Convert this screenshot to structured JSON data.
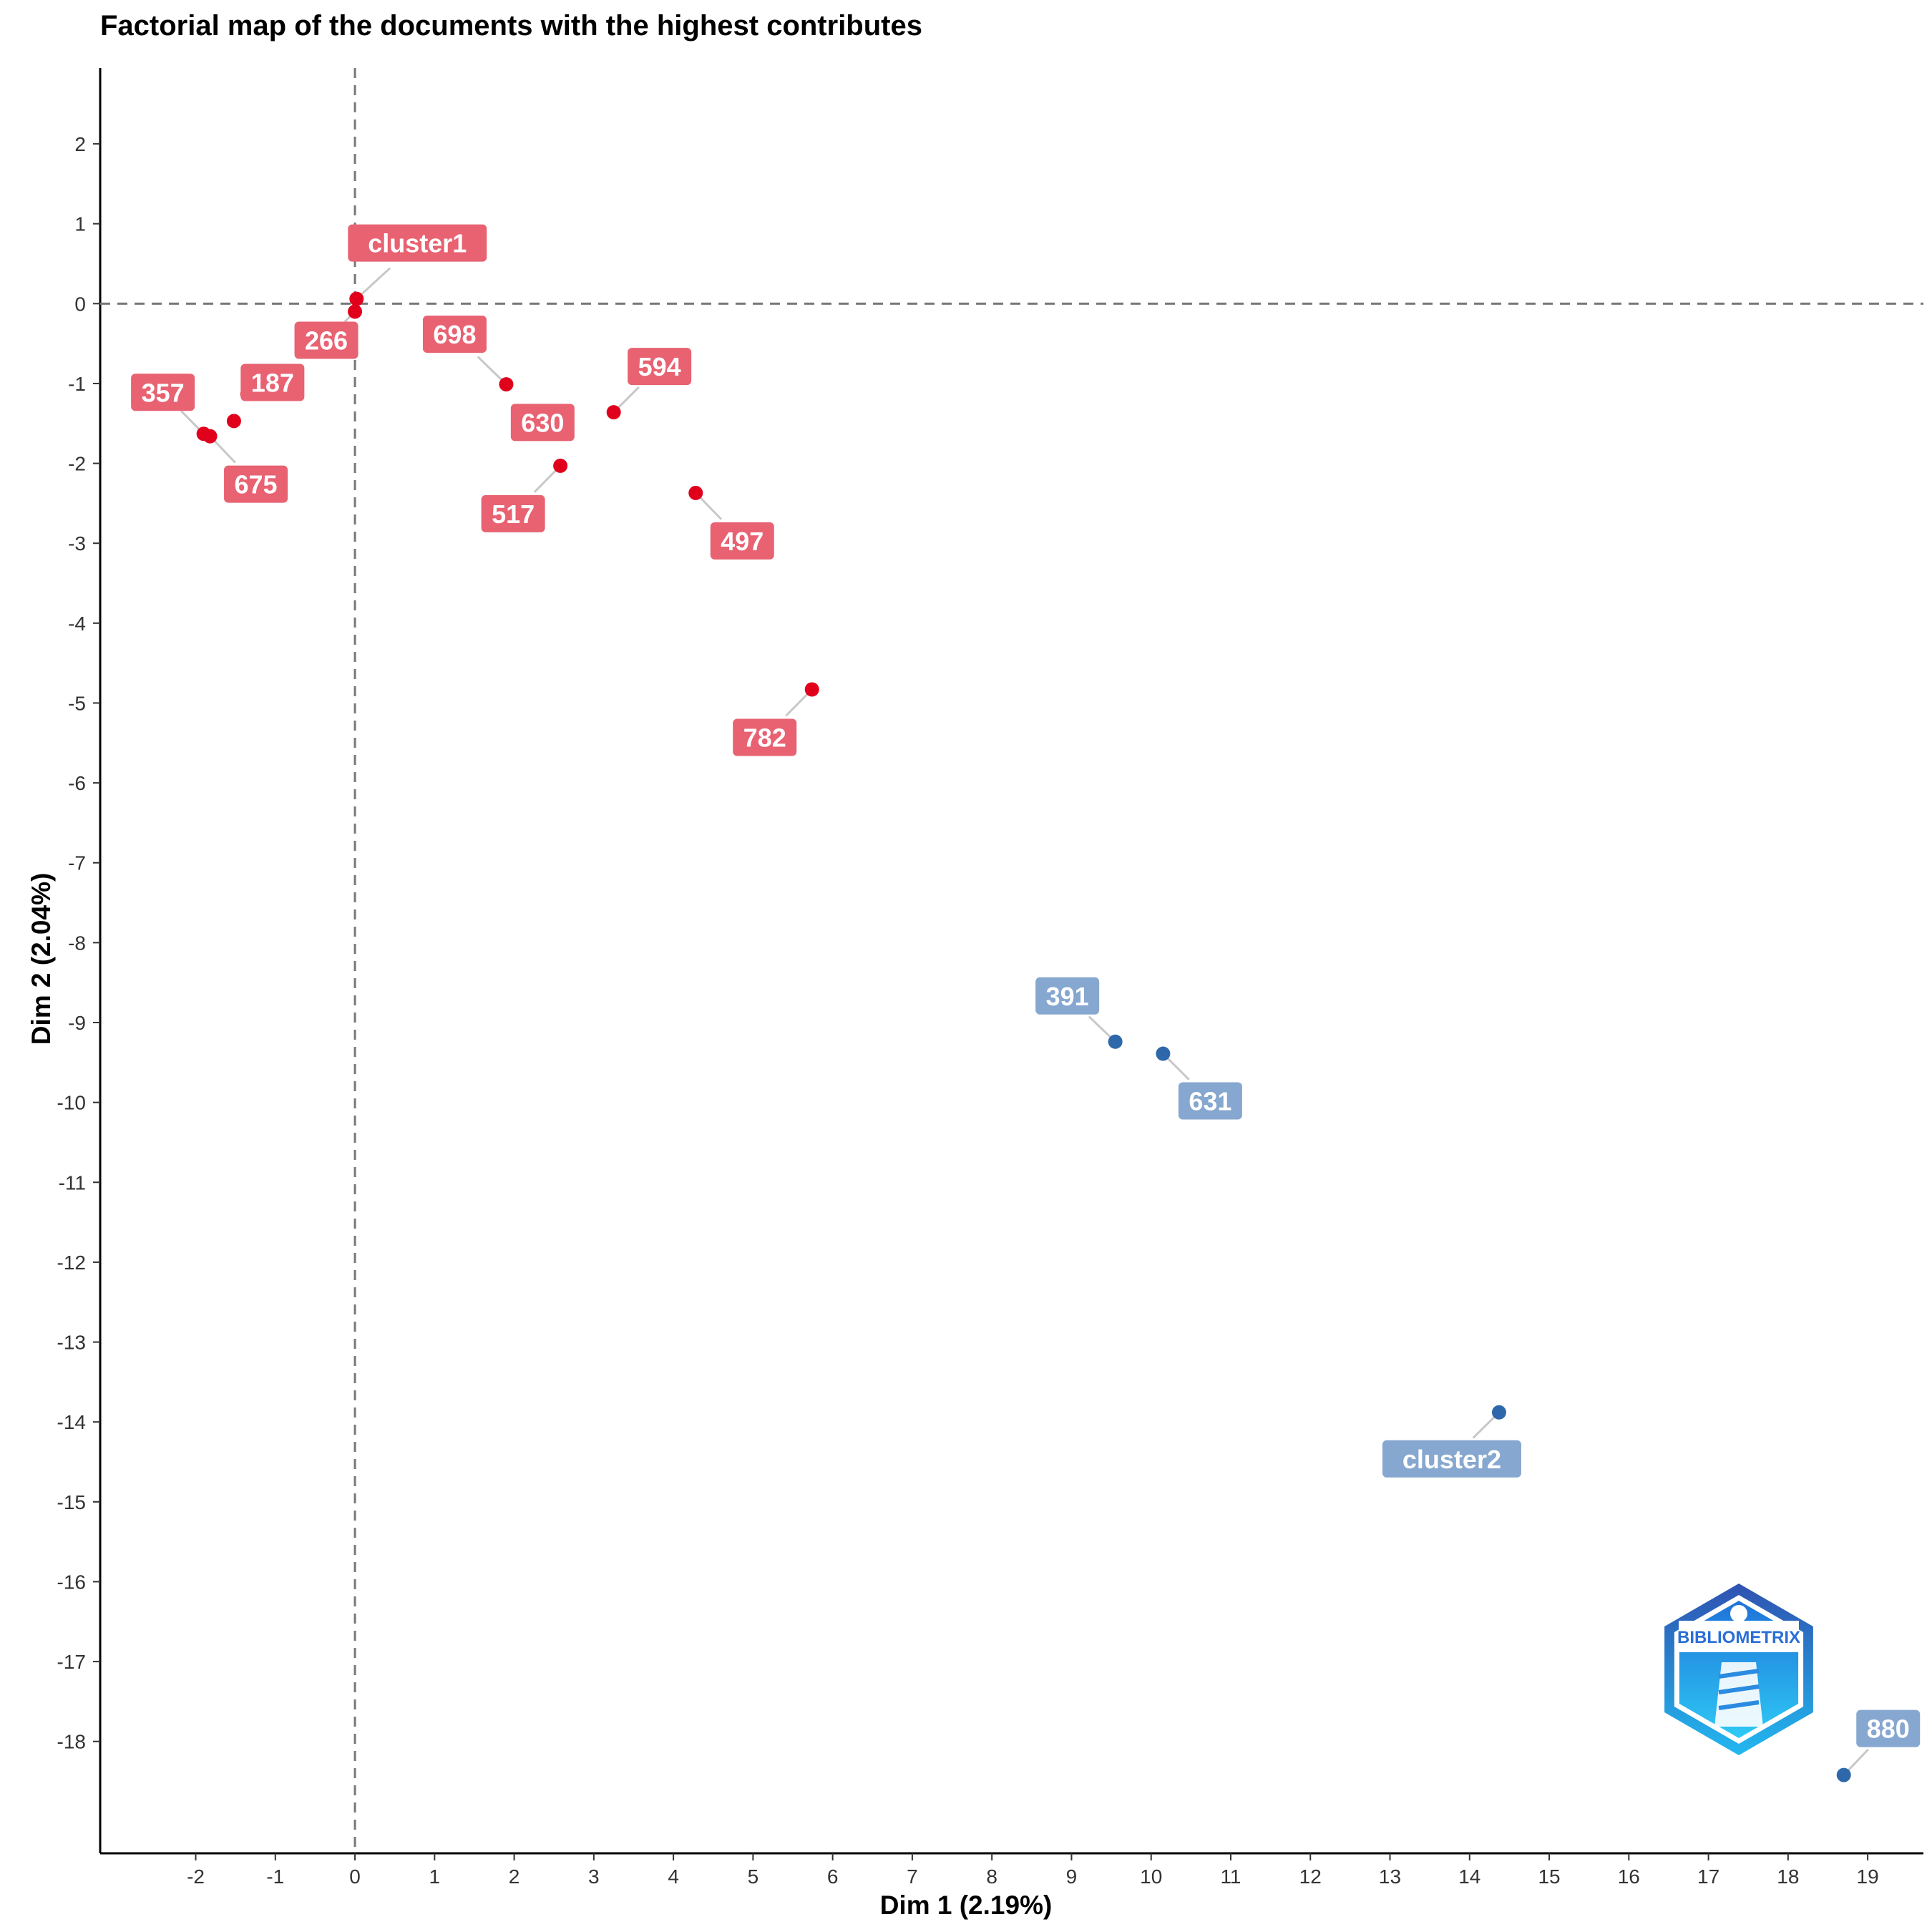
{
  "chart_data": {
    "type": "scatter",
    "title": "Factorial map of the documents with the highest contributes",
    "xlabel": "Dim 1 (2.19%)",
    "ylabel": "Dim 2 (2.04%)",
    "xlim": [
      -3.2,
      19.7
    ],
    "ylim": [
      -19.4,
      2.95
    ],
    "xticks": [
      -2,
      -1,
      0,
      1,
      2,
      3,
      4,
      5,
      6,
      7,
      8,
      9,
      10,
      11,
      12,
      13,
      14,
      15,
      16,
      17,
      18,
      19
    ],
    "yticks": [
      2,
      1,
      0,
      -1,
      -2,
      -3,
      -4,
      -5,
      -6,
      -7,
      -8,
      -9,
      -10,
      -11,
      -12,
      -13,
      -14,
      -15,
      -16,
      -17,
      -18
    ],
    "reference_lines": {
      "x": 0,
      "y": 0,
      "style": "dashed"
    },
    "grid": false,
    "colors": {
      "cluster1": "#e0001b",
      "cluster2": "#2e68aa",
      "label_cluster1": "#e86272",
      "label_cluster2": "#86a7cf"
    },
    "series": [
      {
        "points": [
          {
            "label": "cluster1",
            "x": 0.02,
            "y": 0.06
          },
          {
            "label": "266",
            "x": 0.0,
            "y": -0.1
          },
          {
            "label": "187",
            "x": -1.35,
            "y": -1.13
          },
          {
            "label": "357",
            "x": -1.9,
            "y": -1.63
          },
          {
            "label": "675",
            "x": -1.82,
            "y": -1.66
          },
          {
            "label": "698",
            "x": 1.9,
            "y": -1.01
          },
          {
            "label": "630",
            "x": 2.6,
            "y": -1.55
          },
          {
            "label": "594",
            "x": 3.25,
            "y": -1.36
          },
          {
            "label": "517",
            "x": 2.58,
            "y": -2.03
          },
          {
            "label": "497",
            "x": 4.28,
            "y": -2.37
          },
          {
            "label": "782",
            "x": 5.74,
            "y": -4.83
          },
          {
            "label": "",
            "x": -1.52,
            "y": -1.47
          }
        ]
      },
      {
        "points": [
          {
            "label": "391",
            "x": 9.55,
            "y": -9.24
          },
          {
            "label": "631",
            "x": 10.15,
            "y": -9.39
          },
          {
            "label": "cluster2",
            "x": 14.37,
            "y": -13.88
          },
          {
            "label": "880",
            "x": 18.7,
            "y": -18.42
          }
        ]
      }
    ]
  },
  "logo": {
    "text": "BIBLIOMETRIX"
  }
}
